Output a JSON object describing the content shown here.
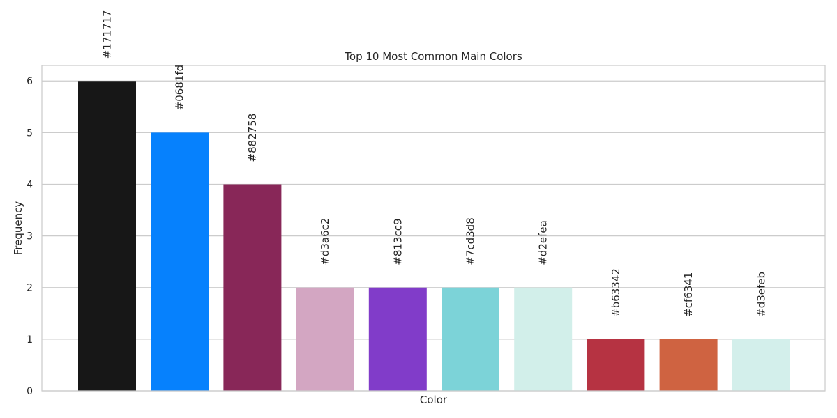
{
  "chart_data": {
    "type": "bar",
    "title": "Top 10 Most Common Main Colors",
    "xlabel": "Color",
    "ylabel": "Frequency",
    "ylim": [
      0,
      6.3
    ],
    "yticks": [
      0,
      1,
      2,
      3,
      4,
      5,
      6
    ],
    "grid": "horizontal",
    "legend": "none",
    "categories": [
      "#171717",
      "#0681fd",
      "#882758",
      "#d3a6c2",
      "#813cc9",
      "#7cd3d8",
      "#d2efea",
      "#b63342",
      "#cf6341",
      "#d3efeb"
    ],
    "values": [
      6,
      5,
      4,
      2,
      2,
      2,
      2,
      1,
      1,
      1
    ],
    "colors": [
      "#171717",
      "#0681fd",
      "#882758",
      "#d3a6c2",
      "#813cc9",
      "#7cd3d8",
      "#d2efea",
      "#b63342",
      "#cf6341",
      "#d3efeb"
    ]
  }
}
